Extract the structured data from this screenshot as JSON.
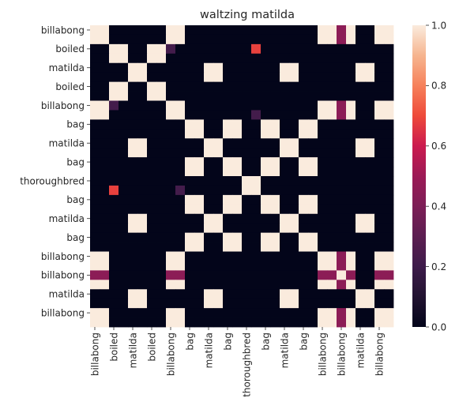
{
  "chart_data": {
    "type": "heatmap",
    "title": "waltzing matilda",
    "xlabel": "",
    "ylabel": "",
    "tokens": [
      "billabong",
      "billabong",
      "boiled",
      "boiled",
      "matilda",
      "matilda",
      "boiled",
      "boiled",
      "billabong",
      "billabong",
      "bag",
      "bag",
      "matilda",
      "matilda",
      "bag",
      "bag",
      "thoroughbred",
      "thoroughbred",
      "bag",
      "bag",
      "matilda",
      "matilda",
      "bag",
      "bag",
      "billabong",
      "billabong",
      "billabong",
      "billabong",
      "matilda",
      "matilda",
      "billabong",
      "billabong"
    ],
    "x_tick_labels": [
      "billabong",
      "boiled",
      "matilda",
      "boiled",
      "billabong",
      "bag",
      "matilda",
      "bag",
      "thoroughbred",
      "bag",
      "matilda",
      "bag",
      "billabong",
      "billabong",
      "matilda",
      "billabong"
    ],
    "y_tick_labels": [
      "billabong",
      "boiled",
      "matilda",
      "boiled",
      "billabong",
      "bag",
      "matilda",
      "bag",
      "thoroughbred",
      "bag",
      "matilda",
      "bag",
      "billabong",
      "billabong",
      "matilda",
      "billabong"
    ],
    "colorbar": {
      "min": 0.0,
      "max": 1.0,
      "ticks": [
        "0.0",
        "0.2",
        "0.4",
        "0.6",
        "0.8",
        "1.0"
      ]
    },
    "special_values": [
      {
        "row": 2,
        "col": 8,
        "value": 0.22
      },
      {
        "row": 8,
        "col": 2,
        "value": 0.22
      },
      {
        "row": 2,
        "col": 17,
        "value": 0.68
      },
      {
        "row": 17,
        "col": 2,
        "value": 0.68
      },
      {
        "row": 9,
        "col": 17,
        "value": 0.22
      },
      {
        "row": 17,
        "col": 9,
        "value": 0.22
      }
    ],
    "self_similar_row": 26,
    "self_similar_value": 0.45,
    "grid": false,
    "colormap": "rocket"
  }
}
